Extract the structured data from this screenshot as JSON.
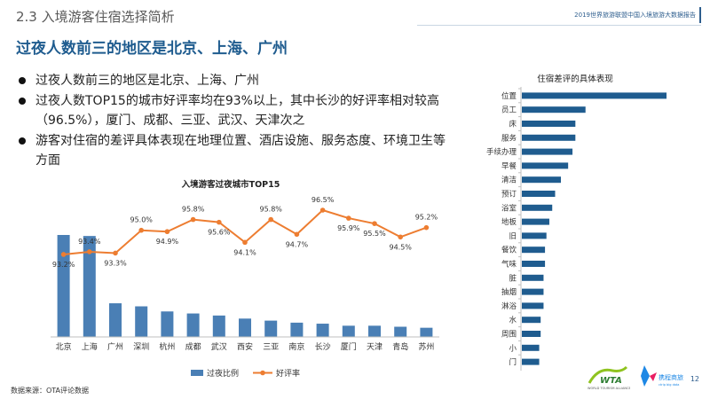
{
  "header": {
    "section_title": "2.3 入境游客住宿选择简析",
    "report_title": "2019世界旅游联盟中国入境旅游大数据报告"
  },
  "headline": "过夜人数前三的地区是北京、上海、广州",
  "bullets": [
    "过夜人数前三的地区是北京、上海、广州",
    "过夜人数TOP15的城市好评率均在93%以上，其中长沙的好评率相对较高（96.5%），厦门、成都、三亚、武汉、天津次之",
    "游客对住宿的差评具体表现在地理位置、酒店设施、服务态度、环境卫生等方面"
  ],
  "footer": {
    "source": "数据来源：OTA评论数据",
    "page_number": "12"
  },
  "colors": {
    "bar": "#4a7fb5",
    "line": "#ed7d31",
    "heading": "#1f5c8f"
  },
  "chart_data": [
    {
      "type": "bar+line",
      "title": "入境游客过夜城市TOP15",
      "categories": [
        "北京",
        "上海",
        "广州",
        "深圳",
        "杭州",
        "成都",
        "武汉",
        "西安",
        "三亚",
        "南京",
        "长沙",
        "厦门",
        "天津",
        "青岛",
        "苏州"
      ],
      "series": [
        {
          "name": "过夜比例",
          "type": "bar",
          "values": [
            100,
            99,
            33,
            30,
            25,
            23,
            21,
            18,
            16,
            14,
            13,
            11,
            11,
            10,
            9
          ]
        },
        {
          "name": "好评率",
          "type": "line",
          "values": [
            93.2,
            93.4,
            93.3,
            95.0,
            94.9,
            95.8,
            95.6,
            94.1,
            95.8,
            94.7,
            96.5,
            95.9,
            95.5,
            94.5,
            95.2
          ],
          "labels": [
            "93.2%",
            "93.4%",
            "93.3%",
            "95.0%",
            "94.9%",
            "95.8%",
            "95.6%",
            "94.1%",
            "95.8%",
            "94.7%",
            "96.5%",
            "95.9%",
            "95.5%",
            "94.5%",
            "95.2%"
          ]
        }
      ],
      "legend": "bottom"
    },
    {
      "type": "bar",
      "orientation": "horizontal",
      "title": "住宿差评的具体表现",
      "categories": [
        "位置",
        "员工",
        "床",
        "服务",
        "手续办理",
        "早餐",
        "清洁",
        "预订",
        "浴室",
        "地板",
        "旧",
        "餐饮",
        "气味",
        "脏",
        "抽烟",
        "淋浴",
        "水",
        "周围",
        "小",
        "门"
      ],
      "values": [
        100,
        44,
        37,
        37,
        35,
        32,
        27,
        23,
        21,
        19,
        17,
        16,
        16,
        15,
        15,
        15,
        13,
        13,
        12,
        12
      ]
    }
  ]
}
